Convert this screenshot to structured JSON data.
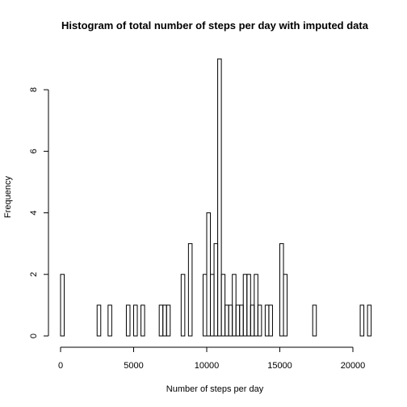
{
  "chart_data": {
    "type": "bar",
    "title": "Histogram of total number of steps per day with imputed data",
    "xlabel": "Number of steps per day",
    "ylabel": "Frequency",
    "bin_width": 250,
    "xlim": [
      0,
      21250
    ],
    "ylim": [
      0,
      9
    ],
    "x_ticks": [
      0,
      5000,
      10000,
      15000,
      20000
    ],
    "y_ticks": [
      0,
      2,
      4,
      6,
      8
    ],
    "bins": [
      {
        "start": 0,
        "count": 2
      },
      {
        "start": 2500,
        "count": 1
      },
      {
        "start": 3250,
        "count": 1
      },
      {
        "start": 4500,
        "count": 1
      },
      {
        "start": 5000,
        "count": 1
      },
      {
        "start": 5500,
        "count": 1
      },
      {
        "start": 6750,
        "count": 1
      },
      {
        "start": 7000,
        "count": 1
      },
      {
        "start": 7250,
        "count": 1
      },
      {
        "start": 8250,
        "count": 2
      },
      {
        "start": 8750,
        "count": 3
      },
      {
        "start": 9750,
        "count": 2
      },
      {
        "start": 10000,
        "count": 4
      },
      {
        "start": 10250,
        "count": 2
      },
      {
        "start": 10500,
        "count": 3
      },
      {
        "start": 10750,
        "count": 9
      },
      {
        "start": 11000,
        "count": 2
      },
      {
        "start": 11250,
        "count": 1
      },
      {
        "start": 11500,
        "count": 1
      },
      {
        "start": 11750,
        "count": 2
      },
      {
        "start": 12000,
        "count": 1
      },
      {
        "start": 12250,
        "count": 1
      },
      {
        "start": 12500,
        "count": 2
      },
      {
        "start": 12750,
        "count": 2
      },
      {
        "start": 13000,
        "count": 1
      },
      {
        "start": 13250,
        "count": 2
      },
      {
        "start": 13500,
        "count": 1
      },
      {
        "start": 14000,
        "count": 1
      },
      {
        "start": 14250,
        "count": 1
      },
      {
        "start": 15000,
        "count": 3
      },
      {
        "start": 15250,
        "count": 2
      },
      {
        "start": 17250,
        "count": 1
      },
      {
        "start": 20500,
        "count": 1
      },
      {
        "start": 21000,
        "count": 1
      }
    ]
  }
}
